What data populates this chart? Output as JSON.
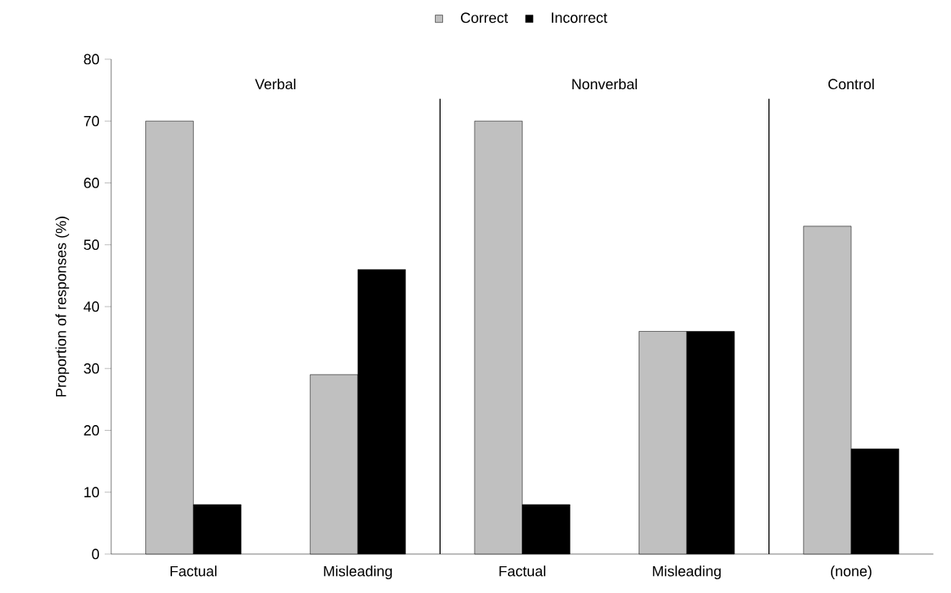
{
  "chart_data": {
    "type": "bar",
    "ylabel": "Proportion of responses (%)",
    "categories": [
      "Factual",
      "Misleading",
      "Factual",
      "Misleading",
      "(none)"
    ],
    "series": [
      {
        "name": "Correct",
        "color": "#c0c0c0",
        "values": [
          70,
          29,
          70,
          36,
          53
        ]
      },
      {
        "name": "Incorrect",
        "color": "#000000",
        "values": [
          8,
          46,
          8,
          36,
          17
        ]
      }
    ],
    "ylim": [
      0,
      80
    ],
    "yticks": [
      0,
      10,
      20,
      30,
      40,
      50,
      60,
      70,
      80
    ],
    "annotations": [
      "Verbal",
      "Nonverbal",
      "Control"
    ],
    "legend": "top"
  }
}
